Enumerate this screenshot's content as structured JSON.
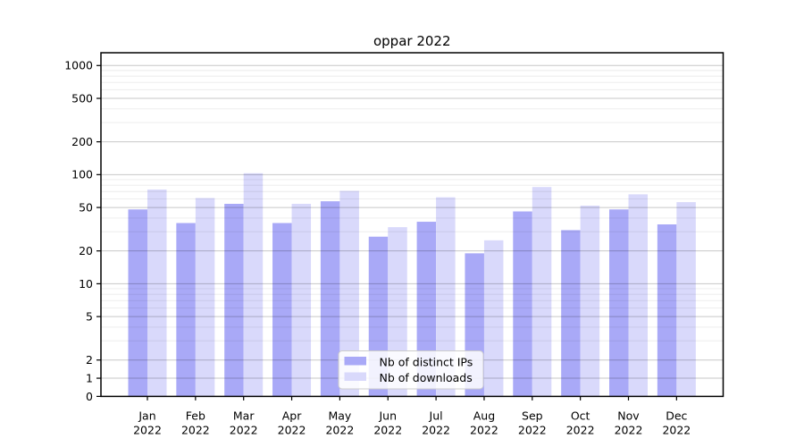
{
  "chart_data": {
    "type": "bar",
    "title": "oppar 2022",
    "categories": [
      "Jan",
      "Feb",
      "Mar",
      "Apr",
      "May",
      "Jun",
      "Jul",
      "Aug",
      "Sep",
      "Oct",
      "Nov",
      "Dec"
    ],
    "year": "2022",
    "series": [
      {
        "name": "Nb of distinct IPs",
        "color": "#a9a9f7",
        "values": [
          48,
          36,
          54,
          36,
          57,
          27,
          37,
          19,
          46,
          31,
          48,
          35
        ]
      },
      {
        "name": "Nb of downloads",
        "color": "#d9d9fb",
        "values": [
          73,
          61,
          103,
          54,
          71,
          33,
          62,
          25,
          77,
          52,
          66,
          56
        ]
      }
    ],
    "yscale": "symlog",
    "yticks": [
      1000,
      500,
      200,
      100,
      50,
      20,
      10,
      5,
      2,
      1,
      0
    ],
    "ylim": [
      0,
      1300
    ],
    "grid": true,
    "legend_position": "lower center"
  }
}
